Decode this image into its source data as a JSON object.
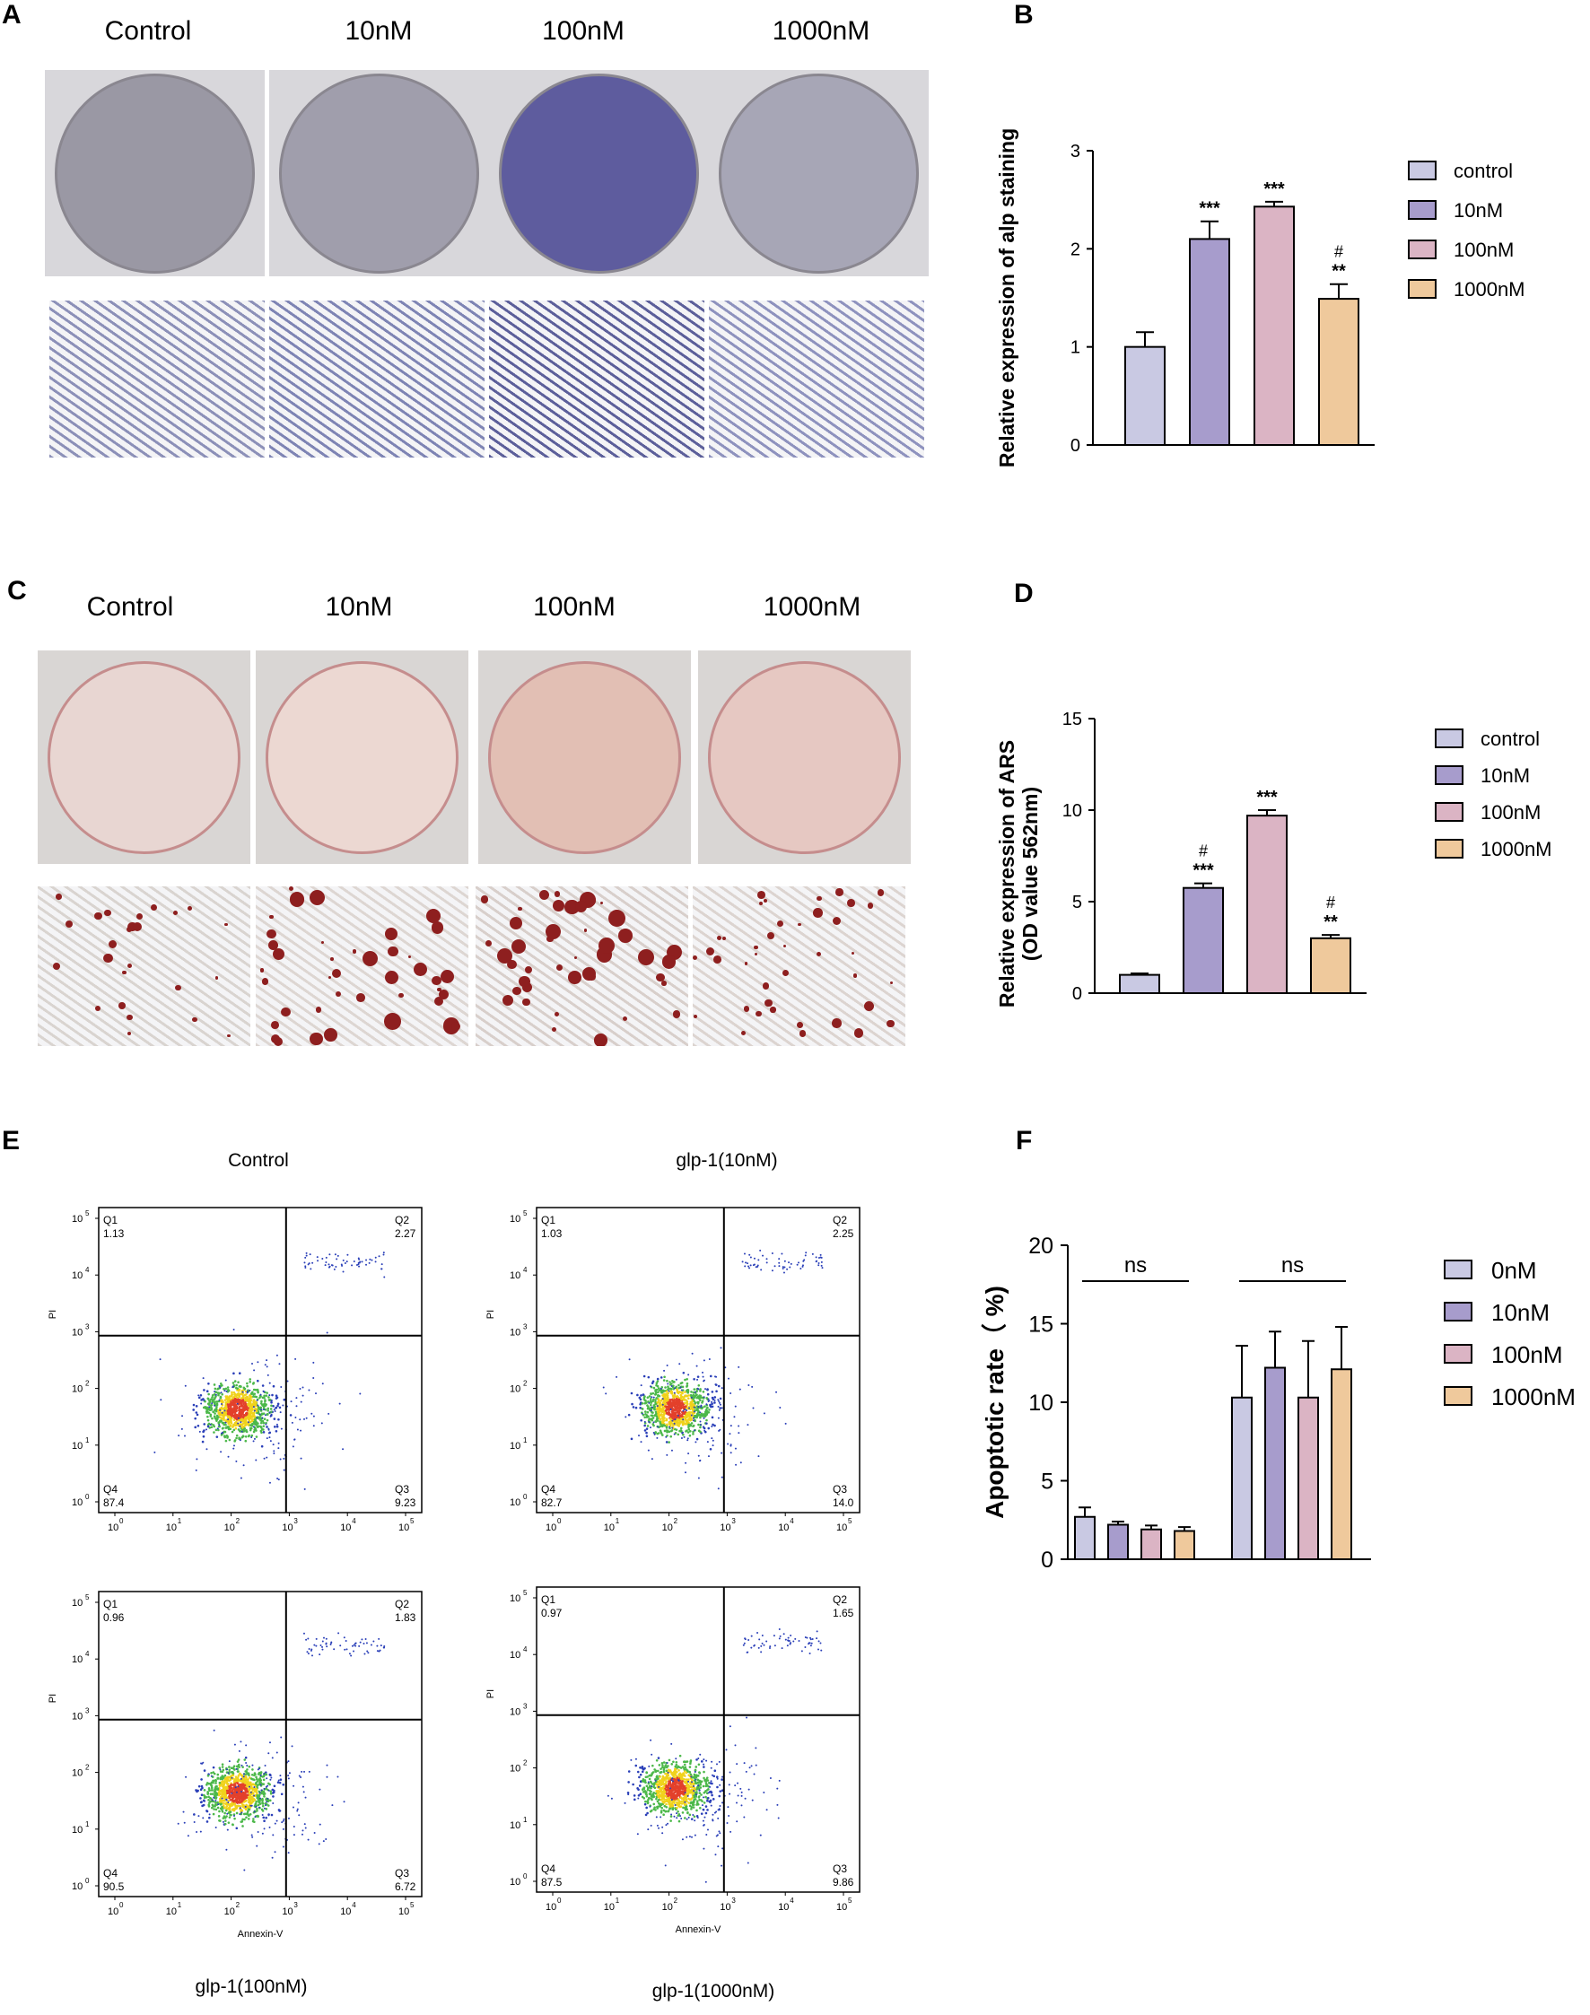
{
  "panels": {
    "A": {
      "letter": "A",
      "columns": [
        "Control",
        "10nM",
        "100nM",
        "1000nM"
      ],
      "dish_colors": [
        "#9a98a4",
        "#a09eac",
        "#5e5c9e",
        "#a7a6b6"
      ],
      "micro_colors": [
        "#8c90b8",
        "#7e84b4",
        "#5c5f9a",
        "#8e92be"
      ]
    },
    "B": {
      "letter": "B",
      "chart_data": {
        "type": "bar",
        "ylabel": "Relative expression of alp staining",
        "categories": [
          "control",
          "10nM",
          "100nM",
          "1000nM"
        ],
        "values": [
          1.0,
          2.1,
          2.43,
          1.49
        ],
        "errors": [
          0.15,
          0.18,
          0.05,
          0.15
        ],
        "colors": [
          "#c9c9e3",
          "#a79ccc",
          "#dbb4c4",
          "#efc99c"
        ],
        "annotations": [
          [
            "",
            ""
          ],
          [
            "***",
            ""
          ],
          [
            "***",
            ""
          ],
          [
            "**",
            "#"
          ]
        ],
        "ylim": [
          0,
          3
        ],
        "yticks": [
          "0",
          "1",
          "2",
          "3"
        ],
        "legend": [
          "control",
          "10nM",
          "100nM",
          "1000nM"
        ],
        "legend_position": "right"
      }
    },
    "C": {
      "letter": "C",
      "columns": [
        "Control",
        "10nM",
        "100nM",
        "1000nM"
      ],
      "dish_colors": [
        "#e8d6d2",
        "#ecd8d2",
        "#e2bfb4",
        "#e6c8c2"
      ],
      "micro_colors": [
        "#d9d4d0",
        "#ddd6d2",
        "#d8cfcb",
        "#dcd4d0"
      ]
    },
    "D": {
      "letter": "D",
      "chart_data": {
        "type": "bar",
        "ylabel_lines": [
          "Relative expression of ARS",
          "(OD value 562nm)"
        ],
        "categories": [
          "control",
          "10nM",
          "100nM",
          "1000nM"
        ],
        "values": [
          1.0,
          5.75,
          9.7,
          3.0
        ],
        "errors": [
          0.08,
          0.25,
          0.3,
          0.18
        ],
        "colors": [
          "#c9c9e3",
          "#a79ccc",
          "#dbb4c4",
          "#efc99c"
        ],
        "annotations": [
          [
            "",
            ""
          ],
          [
            "***",
            "#"
          ],
          [
            "***",
            ""
          ],
          [
            "**",
            "#"
          ]
        ],
        "ylim": [
          0,
          15
        ],
        "yticks": [
          "0",
          "5",
          "10",
          "15"
        ],
        "legend": [
          "control",
          "10nM",
          "100nM",
          "1000nM"
        ],
        "legend_position": "right"
      }
    },
    "E": {
      "letter": "E",
      "plots": [
        {
          "title": "Control",
          "q1": "1.13",
          "q2": "2.27",
          "q3": "9.23",
          "q4": "87.4",
          "xlabel": "",
          "caption": ""
        },
        {
          "title": "glp-1(10nM)",
          "q1": "1.03",
          "q2": "2.25",
          "q3": "14.0",
          "q4": "82.7",
          "xlabel": "",
          "caption": ""
        },
        {
          "title": "",
          "q1": "0.96",
          "q2": "1.83",
          "q3": "6.72",
          "q4": "90.5",
          "xlabel": "Annexin-V",
          "caption": "glp-1(100nM)"
        },
        {
          "title": "",
          "q1": "0.97",
          "q2": "1.65",
          "q3": "9.86",
          "q4": "87.5",
          "xlabel": "Annexin-V",
          "caption": "glp-1(1000nM)"
        }
      ],
      "quadrant_names": [
        "Q1",
        "Q2",
        "Q3",
        "Q4"
      ],
      "ylabel": "PI",
      "tick_labels": [
        "10",
        "10",
        "10",
        "10",
        "10",
        "10"
      ],
      "tick_exponents": [
        "0",
        "1",
        "2",
        "3",
        "4",
        "5"
      ]
    },
    "F": {
      "letter": "F",
      "chart_data": {
        "type": "bar",
        "ylabel": "Apoptotic rate（ %)",
        "groups": 2,
        "series": [
          {
            "name": "0nM",
            "values": [
              2.7,
              10.3
            ],
            "errors": [
              0.6,
              3.3
            ]
          },
          {
            "name": "10nM",
            "values": [
              2.2,
              12.2
            ],
            "errors": [
              0.2,
              2.3
            ]
          },
          {
            "name": "100nM",
            "values": [
              1.9,
              10.3
            ],
            "errors": [
              0.25,
              3.6
            ]
          },
          {
            "name": "1000nM",
            "values": [
              1.8,
              12.1
            ],
            "errors": [
              0.25,
              2.7
            ]
          }
        ],
        "colors": [
          "#c9c9e3",
          "#a79ccc",
          "#dbb4c4",
          "#efc99c"
        ],
        "annotations": [
          "ns",
          "ns"
        ],
        "ylim": [
          0,
          20
        ],
        "yticks": [
          "0",
          "5",
          "10",
          "15",
          "20"
        ],
        "legend_position": "right"
      }
    }
  }
}
